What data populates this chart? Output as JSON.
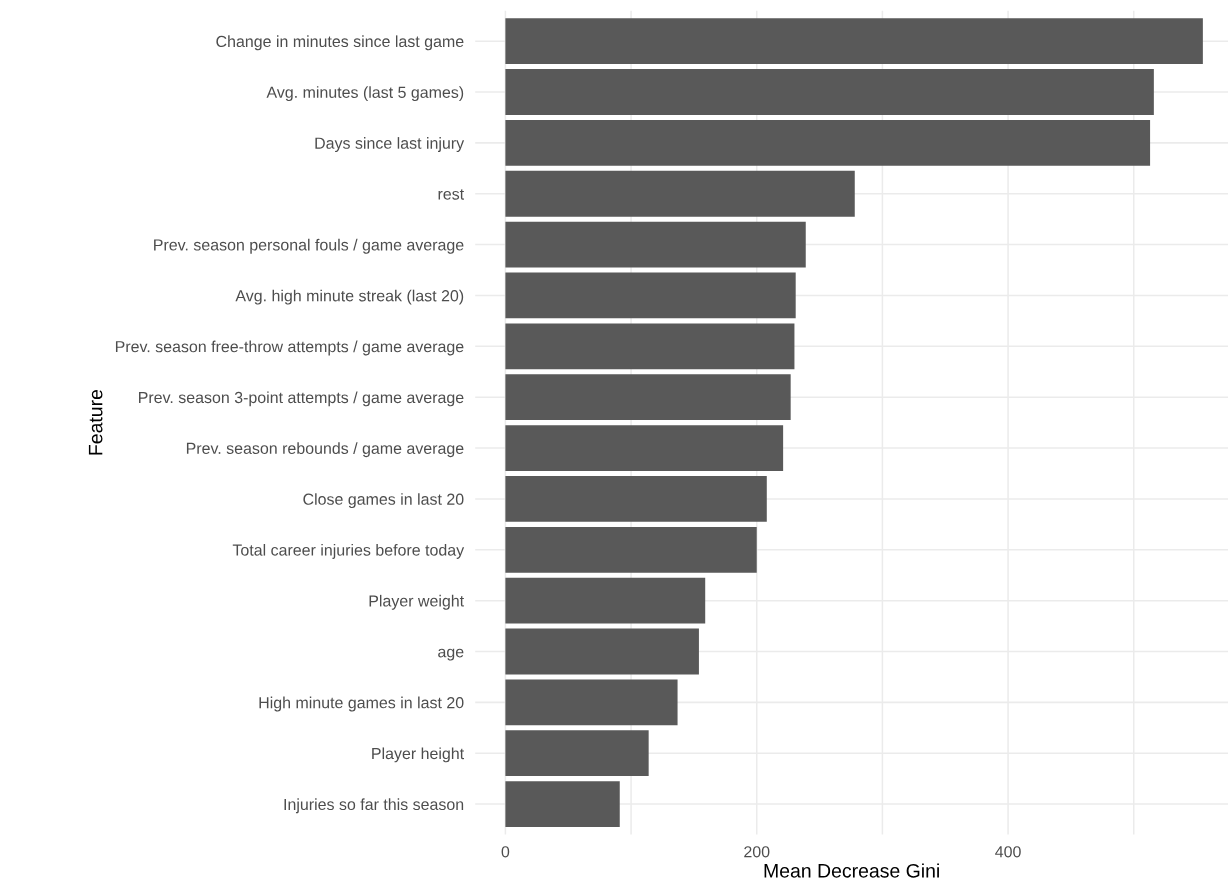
{
  "chart_data": {
    "type": "bar",
    "orientation": "horizontal",
    "xlabel": "Mean Decrease Gini",
    "ylabel": "Feature",
    "categories": [
      "Change in minutes since last game",
      "Avg. minutes (last 5 games)",
      "Days since last injury",
      "rest",
      "Prev. season personal fouls / game average",
      "Avg. high minute streak (last 20)",
      "Prev. season free-throw attempts / game average",
      "Prev. season 3-point attempts / game average",
      "Prev. season rebounds / game average",
      "Close games in last 20",
      "Total career injuries before today",
      "Player weight",
      "age",
      "High minute games in last 20",
      "Player height",
      "Injuries so far this season"
    ],
    "values": [
      555,
      516,
      513,
      278,
      239,
      231,
      230,
      227,
      221,
      208,
      200,
      159,
      154,
      137,
      114,
      91
    ],
    "color": "#595959",
    "xlim": [
      -24,
      575
    ],
    "xticks": [
      0,
      {
        "value": 100,
        "label": null
      },
      200,
      {
        "value": 300,
        "label": null
      },
      400,
      {
        "value": 500,
        "label": null
      }
    ],
    "grid": true
  }
}
